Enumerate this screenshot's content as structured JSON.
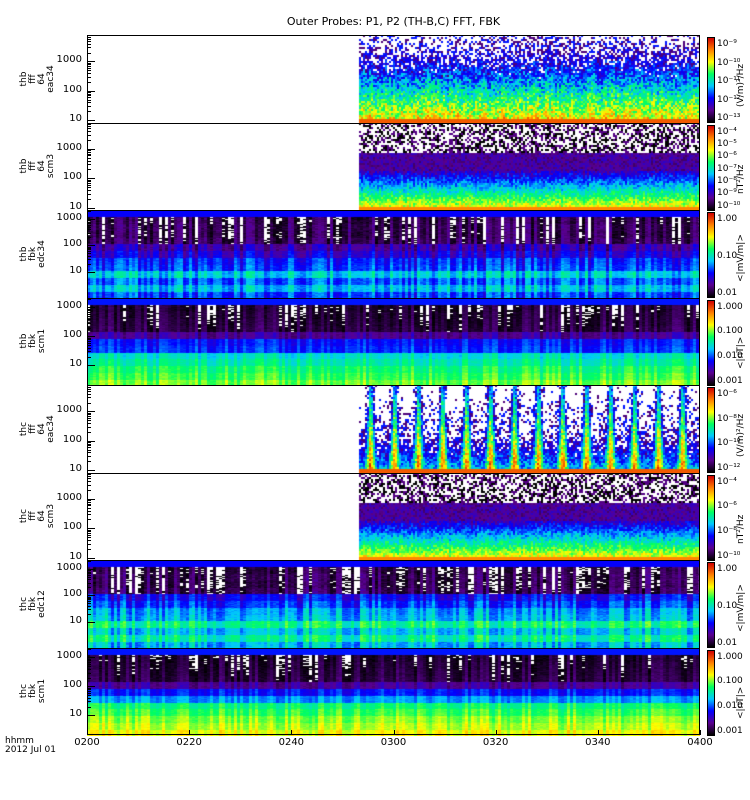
{
  "title": "Outer Probes: P1, P2 (TH-B,C) FFT, FBK",
  "x_axis": {
    "label_line1": "hhmm",
    "label_line2": "2012 Jul 01",
    "ticks": [
      "0200",
      "0220",
      "0240",
      "0300",
      "0320",
      "0340",
      "0400"
    ]
  },
  "chart_data": {
    "type": "heatmap",
    "title": "Outer Probes: P1, P2 (TH-B,C) FFT, FBK",
    "xlabel": "hhmm 2012 Jul 01",
    "xlim": [
      "0200",
      "0400"
    ],
    "colormap": [
      "#000000",
      "#5a0090",
      "#0000ff",
      "#00c8ff",
      "#00ff60",
      "#ffff00",
      "#ff8000",
      "#d00000"
    ],
    "panels": [
      {
        "label": [
          "thb",
          "fff",
          "64",
          "eac34"
        ],
        "kind": "fff_e",
        "data_start": "0253",
        "yscale": "log",
        "ylim": [
          8,
          8000
        ],
        "yticks": [
          "10",
          "100",
          "1000"
        ],
        "cbar_ticks": [
          "10⁻⁹",
          "10⁻¹⁰",
          "10⁻¹¹",
          "10⁻¹²",
          "10⁻¹³"
        ],
        "cbar_unit": "(V/m)²/Hz"
      },
      {
        "label": [
          "thb",
          "fff",
          "64",
          "scm3"
        ],
        "kind": "fff_b",
        "data_start": "0253",
        "yscale": "log",
        "ylim": [
          8,
          8000
        ],
        "yticks": [
          "10",
          "100",
          "1000"
        ],
        "cbar_ticks": [
          "10⁻⁴",
          "10⁻⁵",
          "10⁻⁶",
          "10⁻⁷",
          "10⁻⁸",
          "10⁻⁹",
          "10⁻¹⁰"
        ],
        "cbar_unit": "nT²/Hz"
      },
      {
        "label": [
          "thb",
          "fbk",
          "edc34"
        ],
        "kind": "fbk_e",
        "yscale": "log",
        "ylim": [
          1,
          2200
        ],
        "yticks": [
          "10",
          "100",
          "1000"
        ],
        "cbar_ticks": [
          "1.00",
          "0.10",
          "0.01"
        ],
        "cbar_unit": "<|mV/m|>"
      },
      {
        "label": [
          "thb",
          "fbk",
          "scm1"
        ],
        "kind": "fbk_b",
        "yscale": "log",
        "ylim": [
          2,
          2200
        ],
        "yticks": [
          "10",
          "100",
          "1000"
        ],
        "cbar_ticks": [
          "1.000",
          "0.100",
          "0.010",
          "0.001"
        ],
        "cbar_unit": "<|nT|>"
      },
      {
        "label": [
          "thc",
          "fff",
          "64",
          "eac34"
        ],
        "kind": "fff_e2",
        "data_start": "0253",
        "yscale": "log",
        "ylim": [
          8,
          8000
        ],
        "yticks": [
          "10",
          "100",
          "1000"
        ],
        "cbar_ticks": [
          "10⁻⁶",
          "10⁻⁸",
          "10⁻¹⁰",
          "10⁻¹²"
        ],
        "cbar_unit": "(V/m)²/Hz"
      },
      {
        "label": [
          "thc",
          "fff",
          "64",
          "scm3"
        ],
        "kind": "fff_b",
        "data_start": "0253",
        "yscale": "log",
        "ylim": [
          8,
          8000
        ],
        "yticks": [
          "10",
          "100",
          "1000"
        ],
        "cbar_ticks": [
          "10⁻⁴",
          "10⁻⁶",
          "10⁻⁸",
          "10⁻¹⁰"
        ],
        "cbar_unit": "nT²/Hz"
      },
      {
        "label": [
          "thc",
          "fbk",
          "edc12"
        ],
        "kind": "fbk_e2",
        "yscale": "log",
        "ylim": [
          1,
          2200
        ],
        "yticks": [
          "10",
          "100",
          "1000"
        ],
        "cbar_ticks": [
          "1.00",
          "0.10",
          "0.01"
        ],
        "cbar_unit": "<|mV/m|>"
      },
      {
        "label": [
          "thc",
          "fbk",
          "scm1"
        ],
        "kind": "fbk_b2",
        "yscale": "log",
        "ylim": [
          2,
          2200
        ],
        "yticks": [
          "10",
          "100",
          "1000"
        ],
        "cbar_ticks": [
          "1.000",
          "0.100",
          "0.010",
          "0.001"
        ],
        "cbar_unit": "<|nT|>"
      }
    ]
  }
}
